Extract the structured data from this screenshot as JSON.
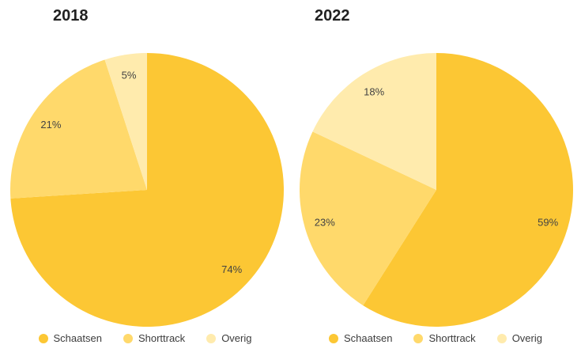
{
  "page": {
    "background": "#ffffff"
  },
  "chart_data": [
    {
      "type": "pie",
      "title": "2018",
      "categories": [
        "Schaatsen",
        "Shorttrack",
        "Overig"
      ],
      "values": [
        74,
        21,
        5
      ],
      "labels": [
        "74%",
        "21%",
        "5%"
      ],
      "colors": [
        "#FCC734",
        "#FFD96B",
        "#FFEBAD"
      ],
      "label_color": "#434343",
      "start_angle_deg": 0,
      "direction": "clockwise",
      "legend_position": "bottom"
    },
    {
      "type": "pie",
      "title": "2022",
      "categories": [
        "Schaatsen",
        "Shorttrack",
        "Overig"
      ],
      "values": [
        59,
        23,
        18
      ],
      "labels": [
        "59%",
        "23%",
        "18%"
      ],
      "colors": [
        "#FCC734",
        "#FFD96B",
        "#FFEBAD"
      ],
      "label_color": "#434343",
      "start_angle_deg": 0,
      "direction": "clockwise",
      "legend_position": "bottom"
    }
  ]
}
